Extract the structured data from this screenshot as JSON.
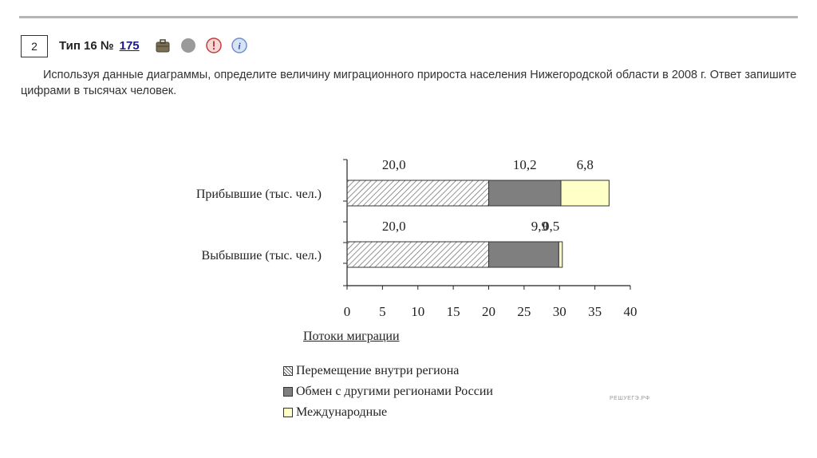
{
  "task": {
    "number": "2",
    "type_label": "Тип 16 №",
    "id": "175"
  },
  "icons": [
    "briefcase-icon",
    "grey-circle-icon",
    "alert-icon",
    "info-icon"
  ],
  "question": {
    "text": "Используя данные диаграммы, определите величину миграционного прироста населения Нижегородской области в 2008 г. Ответ запишите цифрами в тысячах человек."
  },
  "chart_data": {
    "type": "bar",
    "orientation": "horizontal",
    "stacked": true,
    "categories": [
      "Прибывшие (тыс. чел.)",
      "Выбывшие (тыс. чел.)"
    ],
    "series": [
      {
        "name": "Перемещение внутри региона",
        "values": [
          20.0,
          20.0
        ],
        "labels": [
          "20,0",
          "20,0"
        ],
        "pattern": "hatch",
        "color": "#ffffff"
      },
      {
        "name": "Обмен с другими регионами России",
        "values": [
          10.2,
          9.9
        ],
        "labels": [
          "10,2",
          "9,9"
        ],
        "color": "#7f7f7f"
      },
      {
        "name": "Международные",
        "values": [
          6.8,
          0.5
        ],
        "labels": [
          "6,8",
          "0,5"
        ],
        "color": "#ffffc8"
      }
    ],
    "xlim": [
      0,
      40
    ],
    "xticks": [
      "0",
      "5",
      "10",
      "15",
      "20",
      "25",
      "30",
      "35",
      "40"
    ],
    "legend_title": "Потоки миграции",
    "legend_position": "bottom"
  },
  "watermark": "РЕШУЕГЭ.РФ"
}
